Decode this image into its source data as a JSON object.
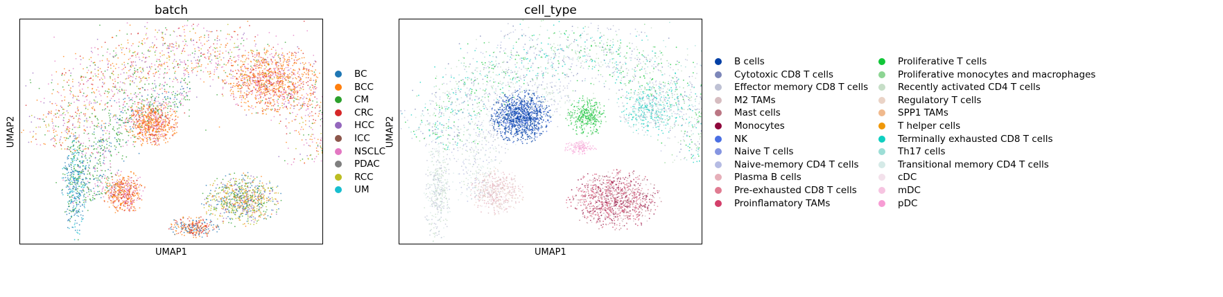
{
  "chart_data": [
    {
      "type": "scatter",
      "title": "batch",
      "xlabel": "UMAP1",
      "ylabel": "UMAP2",
      "legend_placement": "right",
      "grid": false,
      "series": [
        {
          "name": "BC",
          "color": "#1f77b4"
        },
        {
          "name": "BCC",
          "color": "#ff7f0e"
        },
        {
          "name": "CM",
          "color": "#2ca02c"
        },
        {
          "name": "CRC",
          "color": "#d62728"
        },
        {
          "name": "HCC",
          "color": "#9467bd"
        },
        {
          "name": "ICC",
          "color": "#8c564b"
        },
        {
          "name": "NSCLC",
          "color": "#e377c2"
        },
        {
          "name": "PDAC",
          "color": "#7f7f7f"
        },
        {
          "name": "RCC",
          "color": "#bcbd22"
        },
        {
          "name": "UM",
          "color": "#17becf"
        }
      ]
    },
    {
      "type": "scatter",
      "title": "cell_type",
      "xlabel": "UMAP1",
      "ylabel": "UMAP2",
      "legend_placement": "right",
      "grid": false,
      "series": [
        {
          "name": "B cells",
          "color": "#023fa5"
        },
        {
          "name": "Cytotoxic CD8 T cells",
          "color": "#7d87b9"
        },
        {
          "name": "Effector memory CD8 T cells",
          "color": "#bec1d4"
        },
        {
          "name": "M2 TAMs",
          "color": "#d6bcc0"
        },
        {
          "name": "Mast cells",
          "color": "#bb7784"
        },
        {
          "name": "Monocytes",
          "color": "#8e063b"
        },
        {
          "name": "NK",
          "color": "#4a6fe3"
        },
        {
          "name": "Naive T cells",
          "color": "#8595e1"
        },
        {
          "name": "Naive-memory CD4 T cells",
          "color": "#b5bbe3"
        },
        {
          "name": "Plasma B cells",
          "color": "#e6afb9"
        },
        {
          "name": "Pre-exhausted CD8 T cells",
          "color": "#e07b91"
        },
        {
          "name": "Proinflamatory TAMs",
          "color": "#d33f6a"
        },
        {
          "name": "Proliferative T cells",
          "color": "#11c638"
        },
        {
          "name": "Proliferative monocytes and macrophages",
          "color": "#8dd593"
        },
        {
          "name": "Recently activated CD4 T cells",
          "color": "#c6dec7"
        },
        {
          "name": "Regulatory T cells",
          "color": "#ead3c6"
        },
        {
          "name": "SPP1 TAMs",
          "color": "#f0b98d"
        },
        {
          "name": "T helper cells",
          "color": "#ef9708"
        },
        {
          "name": "Terminally exhausted CD8 T cells",
          "color": "#0fcfc0"
        },
        {
          "name": "Th17 cells",
          "color": "#9cded6"
        },
        {
          "name": "Transitional memory CD4 T cells",
          "color": "#d5eae7"
        },
        {
          "name": "cDC",
          "color": "#f3e1eb"
        },
        {
          "name": "mDC",
          "color": "#f6c4e1"
        },
        {
          "name": "pDC",
          "color": "#f79cd4"
        }
      ]
    }
  ]
}
